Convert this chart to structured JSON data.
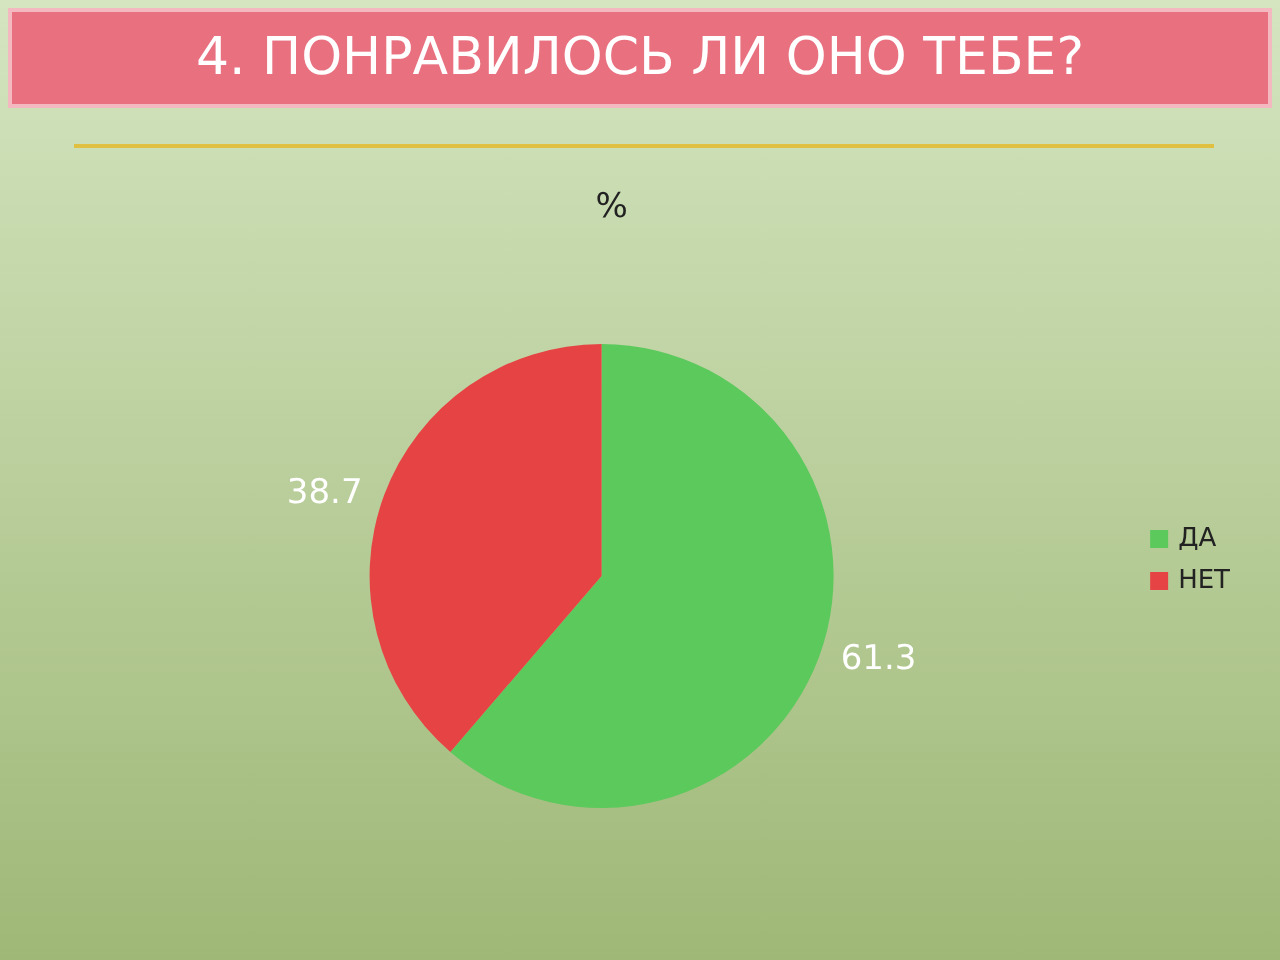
{
  "chart_data": {
    "type": "pie",
    "title": "4. ПОНРАВИЛОСЬ ЛИ ОНО ТЕБЕ?",
    "subtitle": "%",
    "categories": [
      "ДА",
      "НЕТ"
    ],
    "values": [
      61.3,
      38.7
    ],
    "colors": [
      "#5cc95c",
      "#e64444"
    ],
    "data_labels": true,
    "legend": "right"
  }
}
